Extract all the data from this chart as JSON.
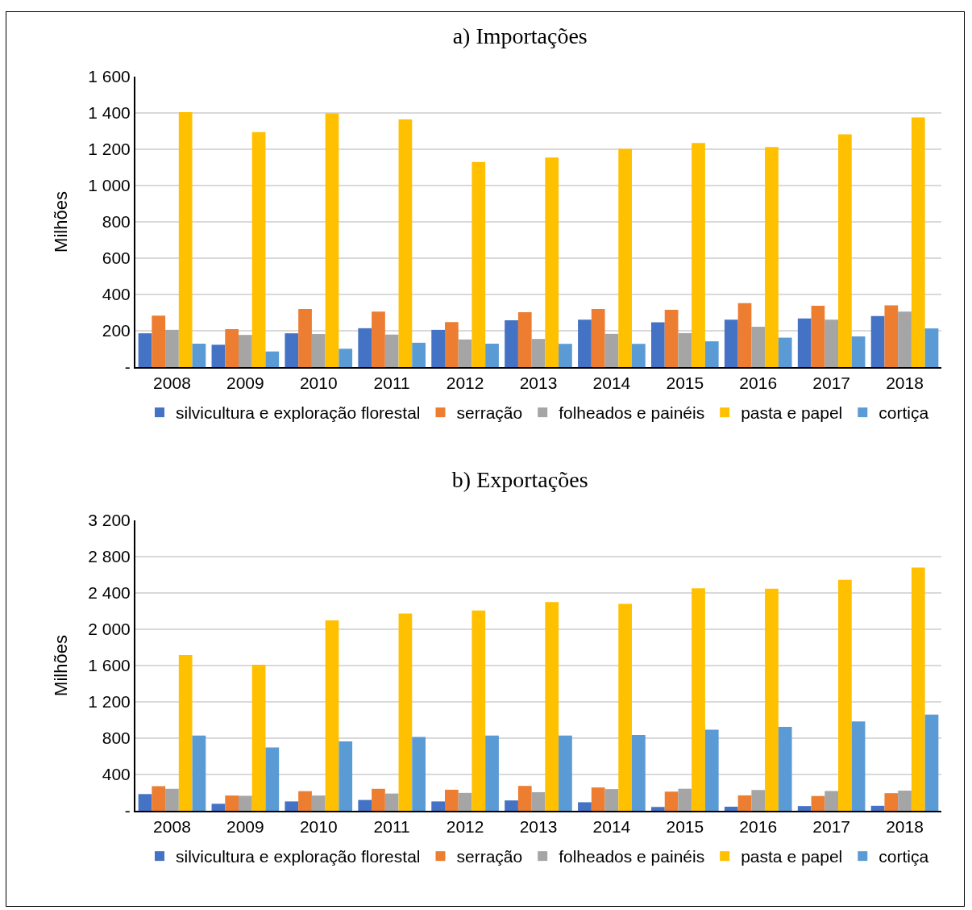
{
  "chart_data": [
    {
      "type": "bar",
      "title": "a) Importações",
      "ylabel": "Milhões",
      "categories": [
        "2008",
        "2009",
        "2010",
        "2011",
        "2012",
        "2013",
        "2014",
        "2015",
        "2016",
        "2017",
        "2018"
      ],
      "series": [
        {
          "name": "silvicultura e exploração florestal",
          "color": "#4472c4",
          "values": [
            186,
            123,
            186,
            214,
            205,
            258,
            261,
            247,
            261,
            268,
            281
          ]
        },
        {
          "name": "serração",
          "color": "#ed7d31",
          "values": [
            283,
            209,
            320,
            306,
            248,
            302,
            320,
            316,
            352,
            338,
            340
          ]
        },
        {
          "name": "folheados e painéis",
          "color": "#a5a5a5",
          "values": [
            205,
            177,
            182,
            179,
            152,
            155,
            183,
            187,
            222,
            261,
            306
          ]
        },
        {
          "name": "pasta e papel",
          "color": "#ffc000",
          "values": [
            1404,
            1294,
            1398,
            1365,
            1130,
            1154,
            1202,
            1234,
            1212,
            1282,
            1376
          ]
        },
        {
          "name": "cortiça",
          "color": "#5b9bd5",
          "values": [
            129,
            86,
            101,
            134,
            129,
            128,
            128,
            142,
            162,
            169,
            213
          ]
        }
      ],
      "ylim": [
        0,
        1600
      ],
      "yticks": [
        {
          "value": 0,
          "label": "-"
        },
        200,
        400,
        600,
        800,
        {
          "value": 1000,
          "label": "1 000"
        },
        {
          "value": 1200,
          "label": "1 200"
        },
        {
          "value": 1400,
          "label": "1 400"
        },
        {
          "value": 1600,
          "label": "1 600"
        }
      ],
      "grid": "y",
      "legend": "bottom"
    },
    {
      "type": "bar",
      "title": "b) Exportações",
      "ylabel": "Milhões",
      "categories": [
        "2008",
        "2009",
        "2010",
        "2011",
        "2012",
        "2013",
        "2014",
        "2015",
        "2016",
        "2017",
        "2018"
      ],
      "series": [
        {
          "name": "silvicultura e exploração florestal",
          "color": "#4472c4",
          "values": [
            184,
            77,
            103,
            119,
            103,
            114,
            94,
            42,
            45,
            52,
            55
          ]
        },
        {
          "name": "serração",
          "color": "#ed7d31",
          "values": [
            271,
            168,
            216,
            242,
            232,
            274,
            257,
            211,
            170,
            163,
            194
          ]
        },
        {
          "name": "folheados e painéis",
          "color": "#a5a5a5",
          "values": [
            242,
            165,
            168,
            190,
            197,
            205,
            239,
            243,
            229,
            218,
            222
          ]
        },
        {
          "name": "pasta e papel",
          "color": "#ffc000",
          "values": [
            1716,
            1610,
            2097,
            2174,
            2206,
            2301,
            2281,
            2451,
            2447,
            2544,
            2679
          ]
        },
        {
          "name": "cortiça",
          "color": "#5b9bd5",
          "values": [
            829,
            697,
            765,
            813,
            829,
            828,
            835,
            894,
            925,
            984,
            1061
          ]
        }
      ],
      "ylim": [
        0,
        3200
      ],
      "yticks": [
        {
          "value": 0,
          "label": "-"
        },
        400,
        800,
        {
          "value": 1200,
          "label": "1 200"
        },
        {
          "value": 1600,
          "label": "1 600"
        },
        {
          "value": 2000,
          "label": "2 000"
        },
        {
          "value": 2400,
          "label": "2 400"
        },
        {
          "value": 2800,
          "label": "2 800"
        },
        {
          "value": 3200,
          "label": "3 200"
        }
      ],
      "grid": "y",
      "legend": "bottom"
    }
  ]
}
